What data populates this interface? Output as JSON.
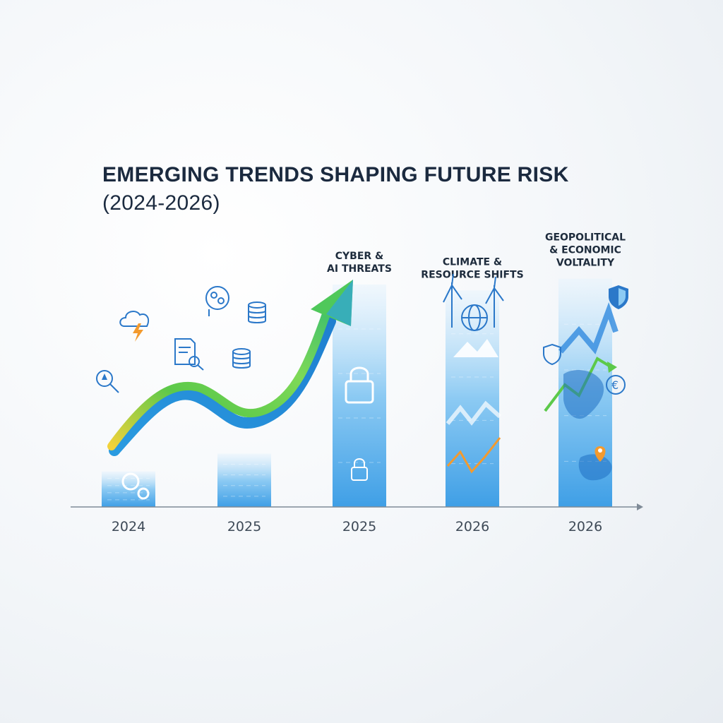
{
  "title": "EMERGING TRENDS SHAPING FUTURE RISK",
  "subtitle": "(2024-2026)",
  "colors": {
    "bar_light": "#d6ebfb",
    "bar_dark": "#4aa8ea",
    "arrow_green": "#5cc94a",
    "arrow_blue": "#2a9be0",
    "axis": "#7f8b97",
    "trend_orange": "#f39a2e"
  },
  "chart_data": {
    "type": "bar",
    "categories": [
      "2024",
      "2025",
      "2025",
      "2026",
      "2026"
    ],
    "values": [
      0.12,
      0.18,
      0.75,
      0.73,
      0.77
    ],
    "ylim": [
      0,
      1
    ],
    "grid": false,
    "category_labels": [
      [],
      [],
      [
        "CYBER &",
        "AI THREATS"
      ],
      [
        "CLIMATE &",
        "RESOURCE SHIFTS"
      ],
      [
        "GEOPOLITICAL",
        "& ECONOMIC",
        "VOLTALITY"
      ]
    ],
    "icons": [
      "cloud-lightning-icon",
      "ai-brain-icon",
      "coin-stack-icon",
      "document-search-icon",
      "coin-stack-icon",
      "magnifier-icon",
      "padlock-icon",
      "wind-turbine-icon",
      "globe-icon",
      "mountain-icon",
      "shield-icon",
      "euro-coin-icon",
      "location-pin-icon"
    ]
  }
}
